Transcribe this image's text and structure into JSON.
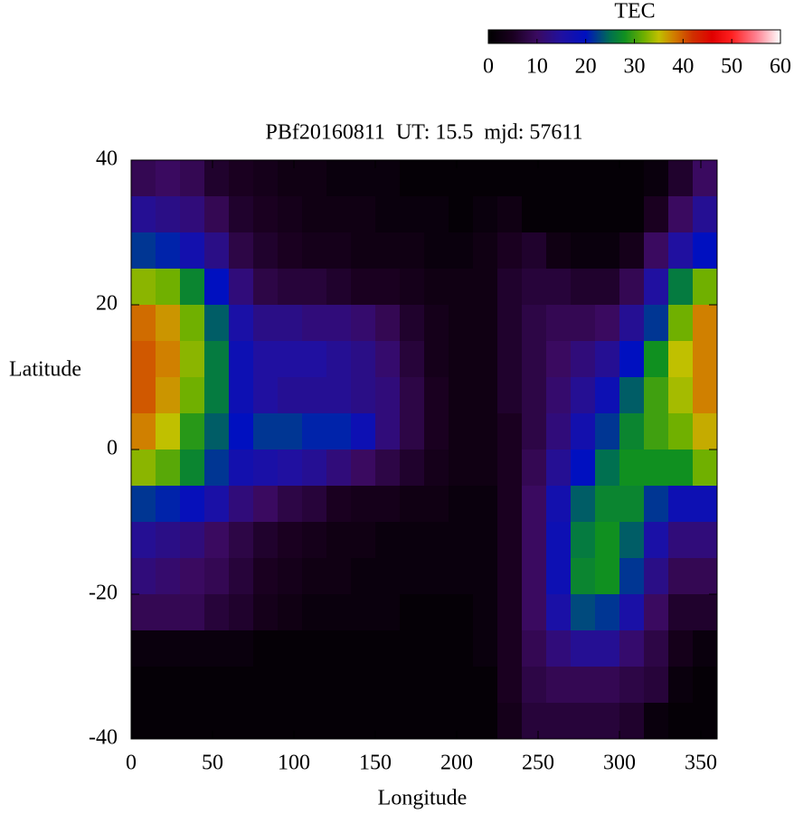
{
  "chart_data": {
    "type": "heatmap",
    "title": "PBf20160811  UT: 15.5  mjd: 57611",
    "x_label": "Longitude",
    "y_label": "Latitude",
    "colorbar_label": "TEC",
    "xlim": [
      0,
      360
    ],
    "ylim": [
      -40,
      40
    ],
    "xticks": [
      0,
      50,
      100,
      150,
      200,
      250,
      300,
      350
    ],
    "yticks": [
      -40,
      -20,
      0,
      20,
      40
    ],
    "clim": [
      0,
      60
    ],
    "cticks": [
      0,
      10,
      20,
      30,
      40,
      50,
      60
    ],
    "colorscale": [
      [
        0,
        "#000000"
      ],
      [
        5,
        "#1a0020"
      ],
      [
        10,
        "#3a0a60"
      ],
      [
        15,
        "#2010a0"
      ],
      [
        20,
        "#0010c0"
      ],
      [
        25,
        "#007050"
      ],
      [
        28,
        "#109020"
      ],
      [
        32,
        "#70b000"
      ],
      [
        35,
        "#c0c000"
      ],
      [
        38,
        "#d08000"
      ],
      [
        42,
        "#d03000"
      ],
      [
        46,
        "#e00000"
      ],
      [
        50,
        "#ff2020"
      ],
      [
        55,
        "#ff8090"
      ],
      [
        60,
        "#ffffff"
      ]
    ],
    "x": [
      7.5,
      22.5,
      37.5,
      52.5,
      67.5,
      82.5,
      97.5,
      112.5,
      127.5,
      142.5,
      157.5,
      172.5,
      187.5,
      202.5,
      217.5,
      232.5,
      247.5,
      262.5,
      277.5,
      292.5,
      307.5,
      322.5,
      337.5,
      352.5
    ],
    "y": [
      37.5,
      32.5,
      27.5,
      22.5,
      17.5,
      12.5,
      7.5,
      2.5,
      -2.5,
      -7.5,
      -12.5,
      -17.5,
      -22.5,
      -27.5,
      -32.5,
      -37.5
    ],
    "values": [
      [
        9,
        10,
        9,
        6,
        5,
        4,
        3,
        3,
        2,
        2,
        2,
        1,
        1,
        1,
        1,
        1,
        1,
        1,
        1,
        1,
        1,
        2,
        6,
        10
      ],
      [
        14,
        13,
        12,
        9,
        6,
        5,
        4,
        3,
        3,
        3,
        2,
        2,
        2,
        1,
        2,
        3,
        1,
        1,
        1,
        1,
        1,
        5,
        10,
        14
      ],
      [
        22,
        21,
        17,
        13,
        8,
        6,
        5,
        4,
        4,
        3,
        3,
        3,
        2,
        2,
        3,
        5,
        6,
        3,
        2,
        2,
        4,
        10,
        15,
        20
      ],
      [
        33,
        32,
        27,
        20,
        12,
        8,
        7,
        7,
        6,
        5,
        5,
        4,
        3,
        3,
        3,
        6,
        7,
        7,
        6,
        6,
        9,
        15,
        26,
        32
      ],
      [
        39,
        37,
        32,
        24,
        16,
        13,
        13,
        12,
        12,
        11,
        9,
        6,
        4,
        3,
        3,
        6,
        8,
        9,
        9,
        10,
        14,
        22,
        32,
        38
      ],
      [
        40,
        38,
        33,
        26,
        18,
        15,
        15,
        15,
        14,
        13,
        11,
        7,
        4,
        3,
        3,
        6,
        8,
        10,
        12,
        14,
        20,
        28,
        35,
        38
      ],
      [
        40,
        37,
        32,
        26,
        18,
        15,
        14,
        14,
        14,
        13,
        12,
        8,
        5,
        3,
        3,
        6,
        8,
        11,
        14,
        18,
        24,
        30,
        34,
        38
      ],
      [
        38,
        35,
        29,
        24,
        20,
        22,
        22,
        21,
        21,
        18,
        12,
        8,
        5,
        3,
        3,
        5,
        8,
        12,
        17,
        22,
        27,
        30,
        32,
        36
      ],
      [
        33,
        31,
        27,
        22,
        17,
        16,
        15,
        14,
        12,
        10,
        8,
        6,
        4,
        3,
        3,
        5,
        9,
        14,
        20,
        25,
        28,
        28,
        28,
        32
      ],
      [
        22,
        21,
        19,
        16,
        12,
        10,
        8,
        7,
        5,
        4,
        4,
        3,
        3,
        2,
        2,
        5,
        10,
        17,
        24,
        27,
        27,
        22,
        18,
        18
      ],
      [
        14,
        13,
        12,
        10,
        8,
        6,
        5,
        4,
        3,
        3,
        2,
        2,
        2,
        2,
        2,
        5,
        10,
        18,
        26,
        28,
        24,
        16,
        12,
        12
      ],
      [
        12,
        11,
        10,
        9,
        7,
        5,
        4,
        3,
        3,
        2,
        2,
        2,
        2,
        2,
        2,
        5,
        10,
        18,
        27,
        28,
        22,
        13,
        9,
        9
      ],
      [
        9,
        9,
        9,
        7,
        6,
        4,
        3,
        2,
        2,
        2,
        2,
        1,
        1,
        1,
        2,
        5,
        10,
        16,
        23,
        22,
        16,
        10,
        6,
        6
      ],
      [
        2,
        2,
        2,
        2,
        2,
        1,
        1,
        1,
        1,
        1,
        1,
        1,
        1,
        1,
        2,
        5,
        9,
        12,
        14,
        14,
        11,
        8,
        4,
        2
      ],
      [
        1,
        1,
        1,
        1,
        1,
        1,
        1,
        1,
        1,
        1,
        1,
        1,
        1,
        1,
        1,
        5,
        8,
        9,
        9,
        9,
        8,
        7,
        2,
        1
      ],
      [
        1,
        1,
        1,
        1,
        1,
        1,
        1,
        1,
        1,
        1,
        1,
        1,
        1,
        1,
        1,
        4,
        7,
        7,
        7,
        7,
        6,
        2,
        1,
        1
      ]
    ]
  }
}
